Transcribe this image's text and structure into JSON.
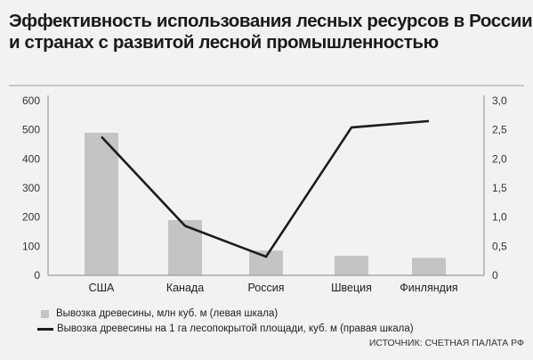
{
  "title_lines": [
    "Эффективность использования лесных ресурсов в России",
    "и странах с развитой лесной промышленностью"
  ],
  "source": "ИСТОЧНИК: СЧЕТНАЯ ПАЛАТА РФ",
  "colors": {
    "bar": "#c4c4c4",
    "line": "#1c1c1c",
    "background": "#f2f2f2"
  },
  "chart_data": {
    "type": "bar",
    "categories": [
      "США",
      "Канада",
      "Россия",
      "Швеция",
      "Финляндия"
    ],
    "left_axis": {
      "ticks": [
        "0",
        "100",
        "200",
        "300",
        "400",
        "500",
        "600"
      ],
      "ylim": [
        0,
        600
      ]
    },
    "right_axis": {
      "ticks": [
        "0",
        "0,5",
        "1,0",
        "1,5",
        "2,0",
        "2,5",
        "3,0"
      ],
      "ylim": [
        0,
        3.0
      ]
    },
    "series": [
      {
        "name": "Вывозка древесины, млн куб. м (левая шкала)",
        "type": "bar",
        "axis": "left",
        "values": [
          490,
          190,
          85,
          67,
          60
        ]
      },
      {
        "name": "Вывозка древесины на 1 га лесопокрытой площади, куб. м (правая шкала)",
        "type": "line",
        "axis": "right",
        "values": [
          2.38,
          0.85,
          0.32,
          2.54,
          2.65
        ]
      }
    ],
    "grid": false,
    "legend_position": "bottom-left"
  }
}
